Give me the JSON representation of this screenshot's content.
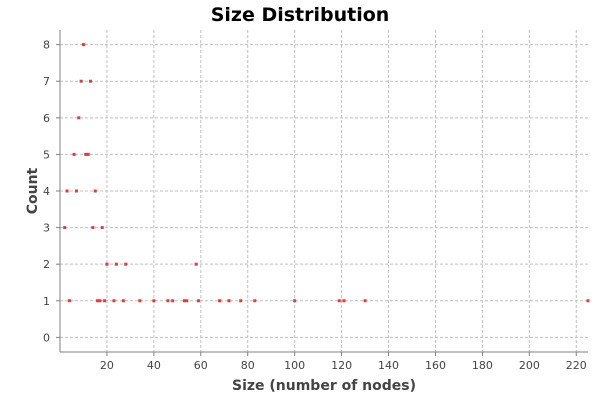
{
  "chart_data": {
    "type": "scatter",
    "title": "Size Distribution",
    "xlabel": "Size (number of nodes)",
    "ylabel": "Count",
    "xlim": [
      0,
      225
    ],
    "ylim": [
      -0.4,
      8.4
    ],
    "x_ticks": [
      20,
      40,
      60,
      80,
      100,
      120,
      140,
      160,
      180,
      200,
      220
    ],
    "y_ticks": [
      0,
      1,
      2,
      3,
      4,
      5,
      6,
      7,
      8
    ],
    "grid": true,
    "legend": "none",
    "point_color": "#e03c3c",
    "points": [
      {
        "x": 2,
        "y": 3
      },
      {
        "x": 3,
        "y": 4
      },
      {
        "x": 4,
        "y": 1
      },
      {
        "x": 6,
        "y": 5
      },
      {
        "x": 7,
        "y": 4
      },
      {
        "x": 8,
        "y": 6
      },
      {
        "x": 9,
        "y": 7
      },
      {
        "x": 10,
        "y": 8
      },
      {
        "x": 11,
        "y": 5
      },
      {
        "x": 12,
        "y": 5
      },
      {
        "x": 13,
        "y": 7
      },
      {
        "x": 14,
        "y": 3
      },
      {
        "x": 15,
        "y": 4
      },
      {
        "x": 16,
        "y": 1
      },
      {
        "x": 17,
        "y": 1
      },
      {
        "x": 18,
        "y": 3
      },
      {
        "x": 19,
        "y": 1
      },
      {
        "x": 20,
        "y": 2
      },
      {
        "x": 23,
        "y": 1
      },
      {
        "x": 24,
        "y": 2
      },
      {
        "x": 27,
        "y": 1
      },
      {
        "x": 28,
        "y": 2
      },
      {
        "x": 34,
        "y": 1
      },
      {
        "x": 40,
        "y": 1
      },
      {
        "x": 46,
        "y": 1
      },
      {
        "x": 48,
        "y": 1
      },
      {
        "x": 53,
        "y": 1
      },
      {
        "x": 54,
        "y": 1
      },
      {
        "x": 58,
        "y": 2
      },
      {
        "x": 59,
        "y": 1
      },
      {
        "x": 68,
        "y": 1
      },
      {
        "x": 72,
        "y": 1
      },
      {
        "x": 77,
        "y": 1
      },
      {
        "x": 83,
        "y": 1
      },
      {
        "x": 100,
        "y": 1
      },
      {
        "x": 119,
        "y": 1
      },
      {
        "x": 121,
        "y": 1
      },
      {
        "x": 130,
        "y": 1
      },
      {
        "x": 225,
        "y": 1
      }
    ]
  }
}
